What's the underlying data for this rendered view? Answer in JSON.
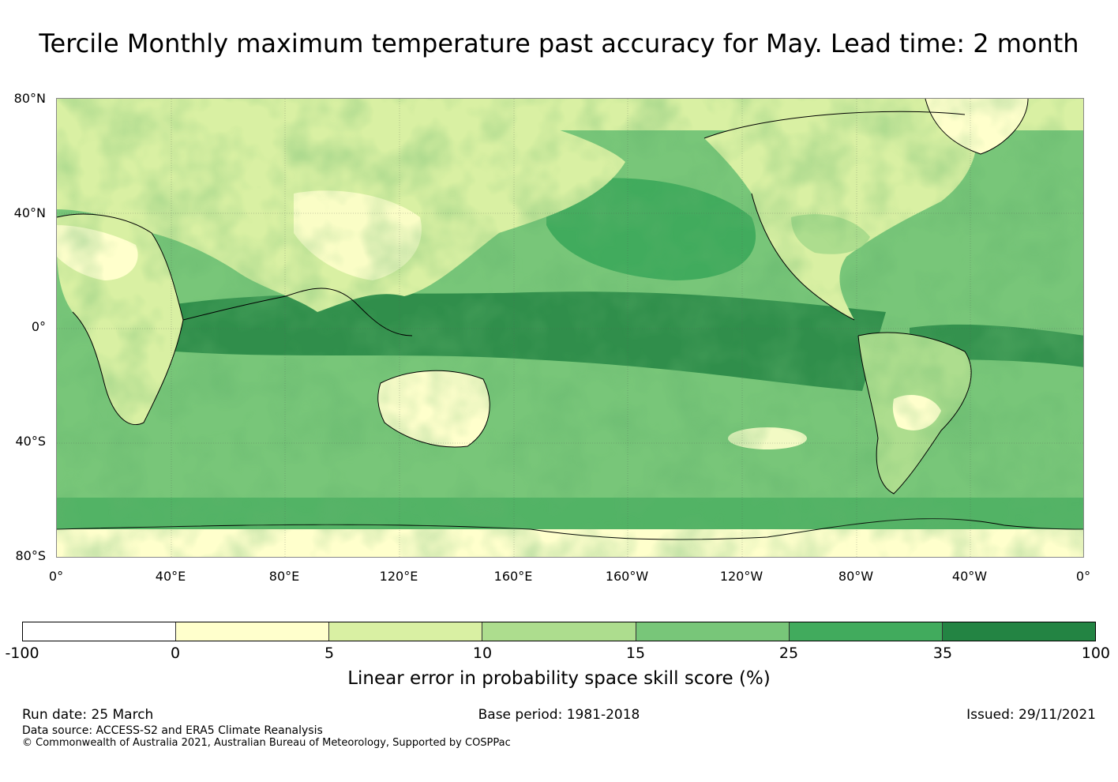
{
  "title": "Tercile Monthly maximum temperature past accuracy for May. Lead time: 2 month",
  "map": {
    "lat_labels": [
      "80°N",
      "40°N",
      "0°",
      "40°S",
      "80°S"
    ],
    "lon_labels": [
      "0°",
      "40°E",
      "80°E",
      "120°E",
      "160°E",
      "160°W",
      "120°W",
      "80°W",
      "40°W",
      "0°"
    ],
    "ocean_color": "#7cc47a",
    "land_color": "#d7ee9c"
  },
  "colorbar": {
    "ticks": [
      "-100",
      "0",
      "5",
      "10",
      "15",
      "25",
      "35",
      "100"
    ],
    "colors": [
      "#ffffff",
      "#ffffcc",
      "#d9f0a3",
      "#addd8e",
      "#78c679",
      "#41ab5d",
      "#238443"
    ],
    "label": "Linear error in probability space skill score (%)"
  },
  "footer": {
    "run_date": "Run date: 25 March",
    "base_period": "Base period: 1981-2018",
    "issued": "Issued: 29/11/2021",
    "data_source": "Data source: ACCESS-S2 and ERA5 Climate Reanalysis",
    "copyright": "© Commonwealth of Australia 2021, Australian Bureau of Meteorology, Supported by COSPPac"
  }
}
